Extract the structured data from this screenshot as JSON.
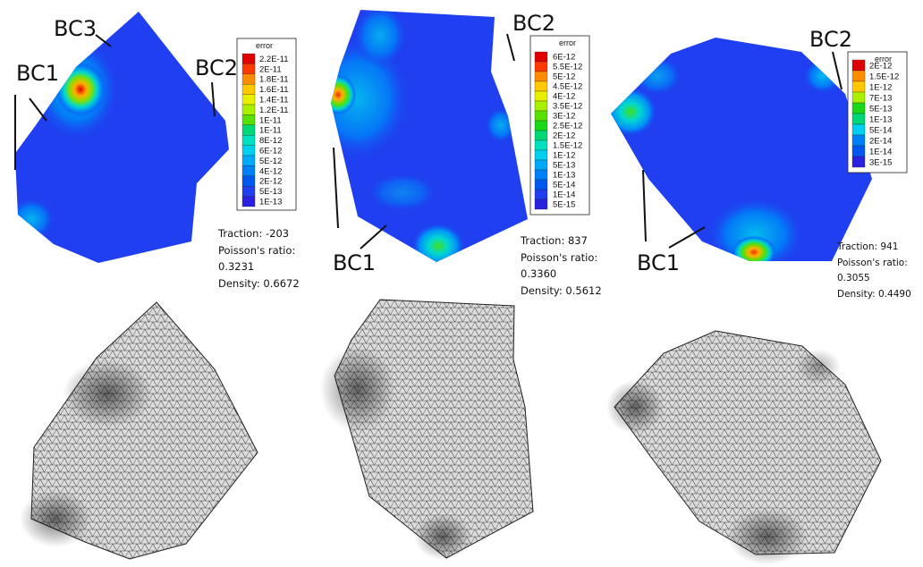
{
  "panels": [
    {
      "id": "p1",
      "labels": [
        "BC1",
        "BC2",
        "BC3"
      ],
      "legend": {
        "title": "error",
        "ticks": [
          "2.2E-11",
          "2E-11",
          "1.8E-11",
          "1.6E-11",
          "1.4E-11",
          "1.2E-11",
          "1E-11",
          "1E-11",
          "8E-12",
          "6E-12",
          "5E-12",
          "4E-12",
          "2E-12",
          "5E-13",
          "1E-13"
        ]
      },
      "info": {
        "traction": "Traction: -203",
        "poisson_label": "Poisson's ratio:",
        "poisson_value": "0.3231",
        "density": "Density: 0.6672"
      }
    },
    {
      "id": "p2",
      "labels": [
        "BC1",
        "BC2"
      ],
      "legend": {
        "title": "error",
        "ticks": [
          "6E-12",
          "5.5E-12",
          "5E-12",
          "4.5E-12",
          "4E-12",
          "3.5E-12",
          "3E-12",
          "2.5E-12",
          "2E-12",
          "1.5E-12",
          "1E-12",
          "5E-13",
          "1E-13",
          "5E-14",
          "1E-14",
          "5E-15"
        ]
      },
      "info": {
        "traction": "Traction: 837",
        "poisson_label": "Poisson's ratio:",
        "poisson_value": "0.3360",
        "density": "Density: 0.5612"
      }
    },
    {
      "id": "p3",
      "labels": [
        "BC1",
        "BC2"
      ],
      "legend": {
        "title": "error",
        "ticks": [
          "2E-12",
          "1.5E-12",
          "1E-12",
          "7E-13",
          "5E-13",
          "1E-13",
          "5E-14",
          "2E-14",
          "1E-14",
          "3E-15"
        ]
      },
      "info": {
        "traction": "Traction: 941",
        "poisson_label": "Poisson's ratio:",
        "poisson_value": "0.3055",
        "density": "Density: 0.4490"
      }
    }
  ],
  "colors": {
    "field_base": "#1f3ff0",
    "mesh_fill": "#d9d9d9",
    "mesh_line": "#333333",
    "scale": [
      "#e00000",
      "#ff3a00",
      "#ff8c00",
      "#ffc800",
      "#e8f000",
      "#a8f000",
      "#58e000",
      "#18d818",
      "#00d878",
      "#00e0c0",
      "#00d0f0",
      "#00a8f8",
      "#0080f8",
      "#0058f0",
      "#1f3ff0",
      "#2a20e0"
    ]
  }
}
